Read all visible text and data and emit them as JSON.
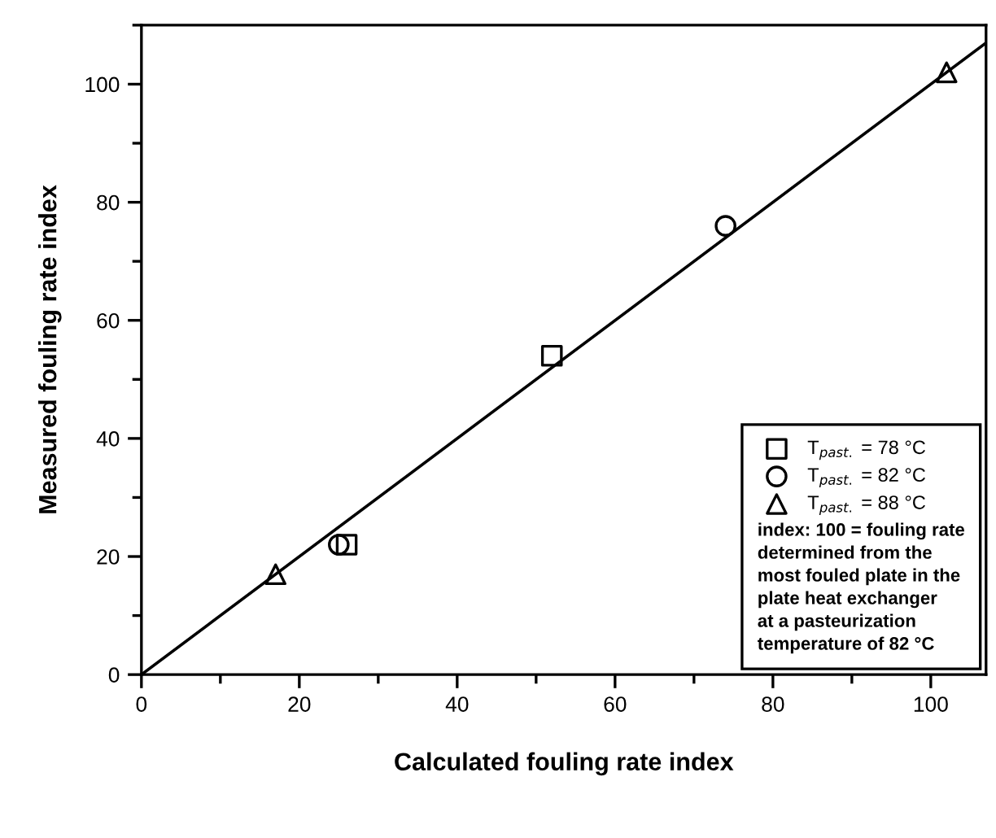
{
  "chart_data": {
    "type": "scatter",
    "xlabel": "Calculated fouling rate index",
    "ylabel": "Measured fouling rate index",
    "series": [
      {
        "name": "T$_{past.}$ = 78 °C",
        "color": "#000000",
        "marker": "square",
        "x": [
          26,
          52
        ],
        "values": [
          22,
          54
        ]
      },
      {
        "name": "T$_{past.}$ = 82 °C",
        "color": "#000000",
        "marker": "circle",
        "x": [
          25,
          74
        ],
        "values": [
          22,
          76
        ]
      },
      {
        "name": "T$_{past.}$ = 88 °C",
        "color": "#000000",
        "marker": "triangle",
        "x": [
          17,
          102
        ],
        "values": [
          17,
          102
        ]
      },
      {
        "type": "line",
        "color": "#000000",
        "x": [
          0,
          107
        ],
        "values": [
          0,
          107
        ]
      }
    ],
    "annotations": [
      "index: 100 = fouling rate\ndetermined from the\nmost fouled plate in the\nplate heat exchanger\nat a pasteurization\ntemperature of 82 °C"
    ],
    "xlim": [
      0,
      107
    ],
    "ylim": [
      0,
      110
    ],
    "xticks": [
      0,
      20,
      40,
      60,
      80,
      100
    ],
    "yticks": [
      0,
      20,
      40,
      60,
      80,
      100
    ],
    "grid": false,
    "legend": "bottom right"
  }
}
